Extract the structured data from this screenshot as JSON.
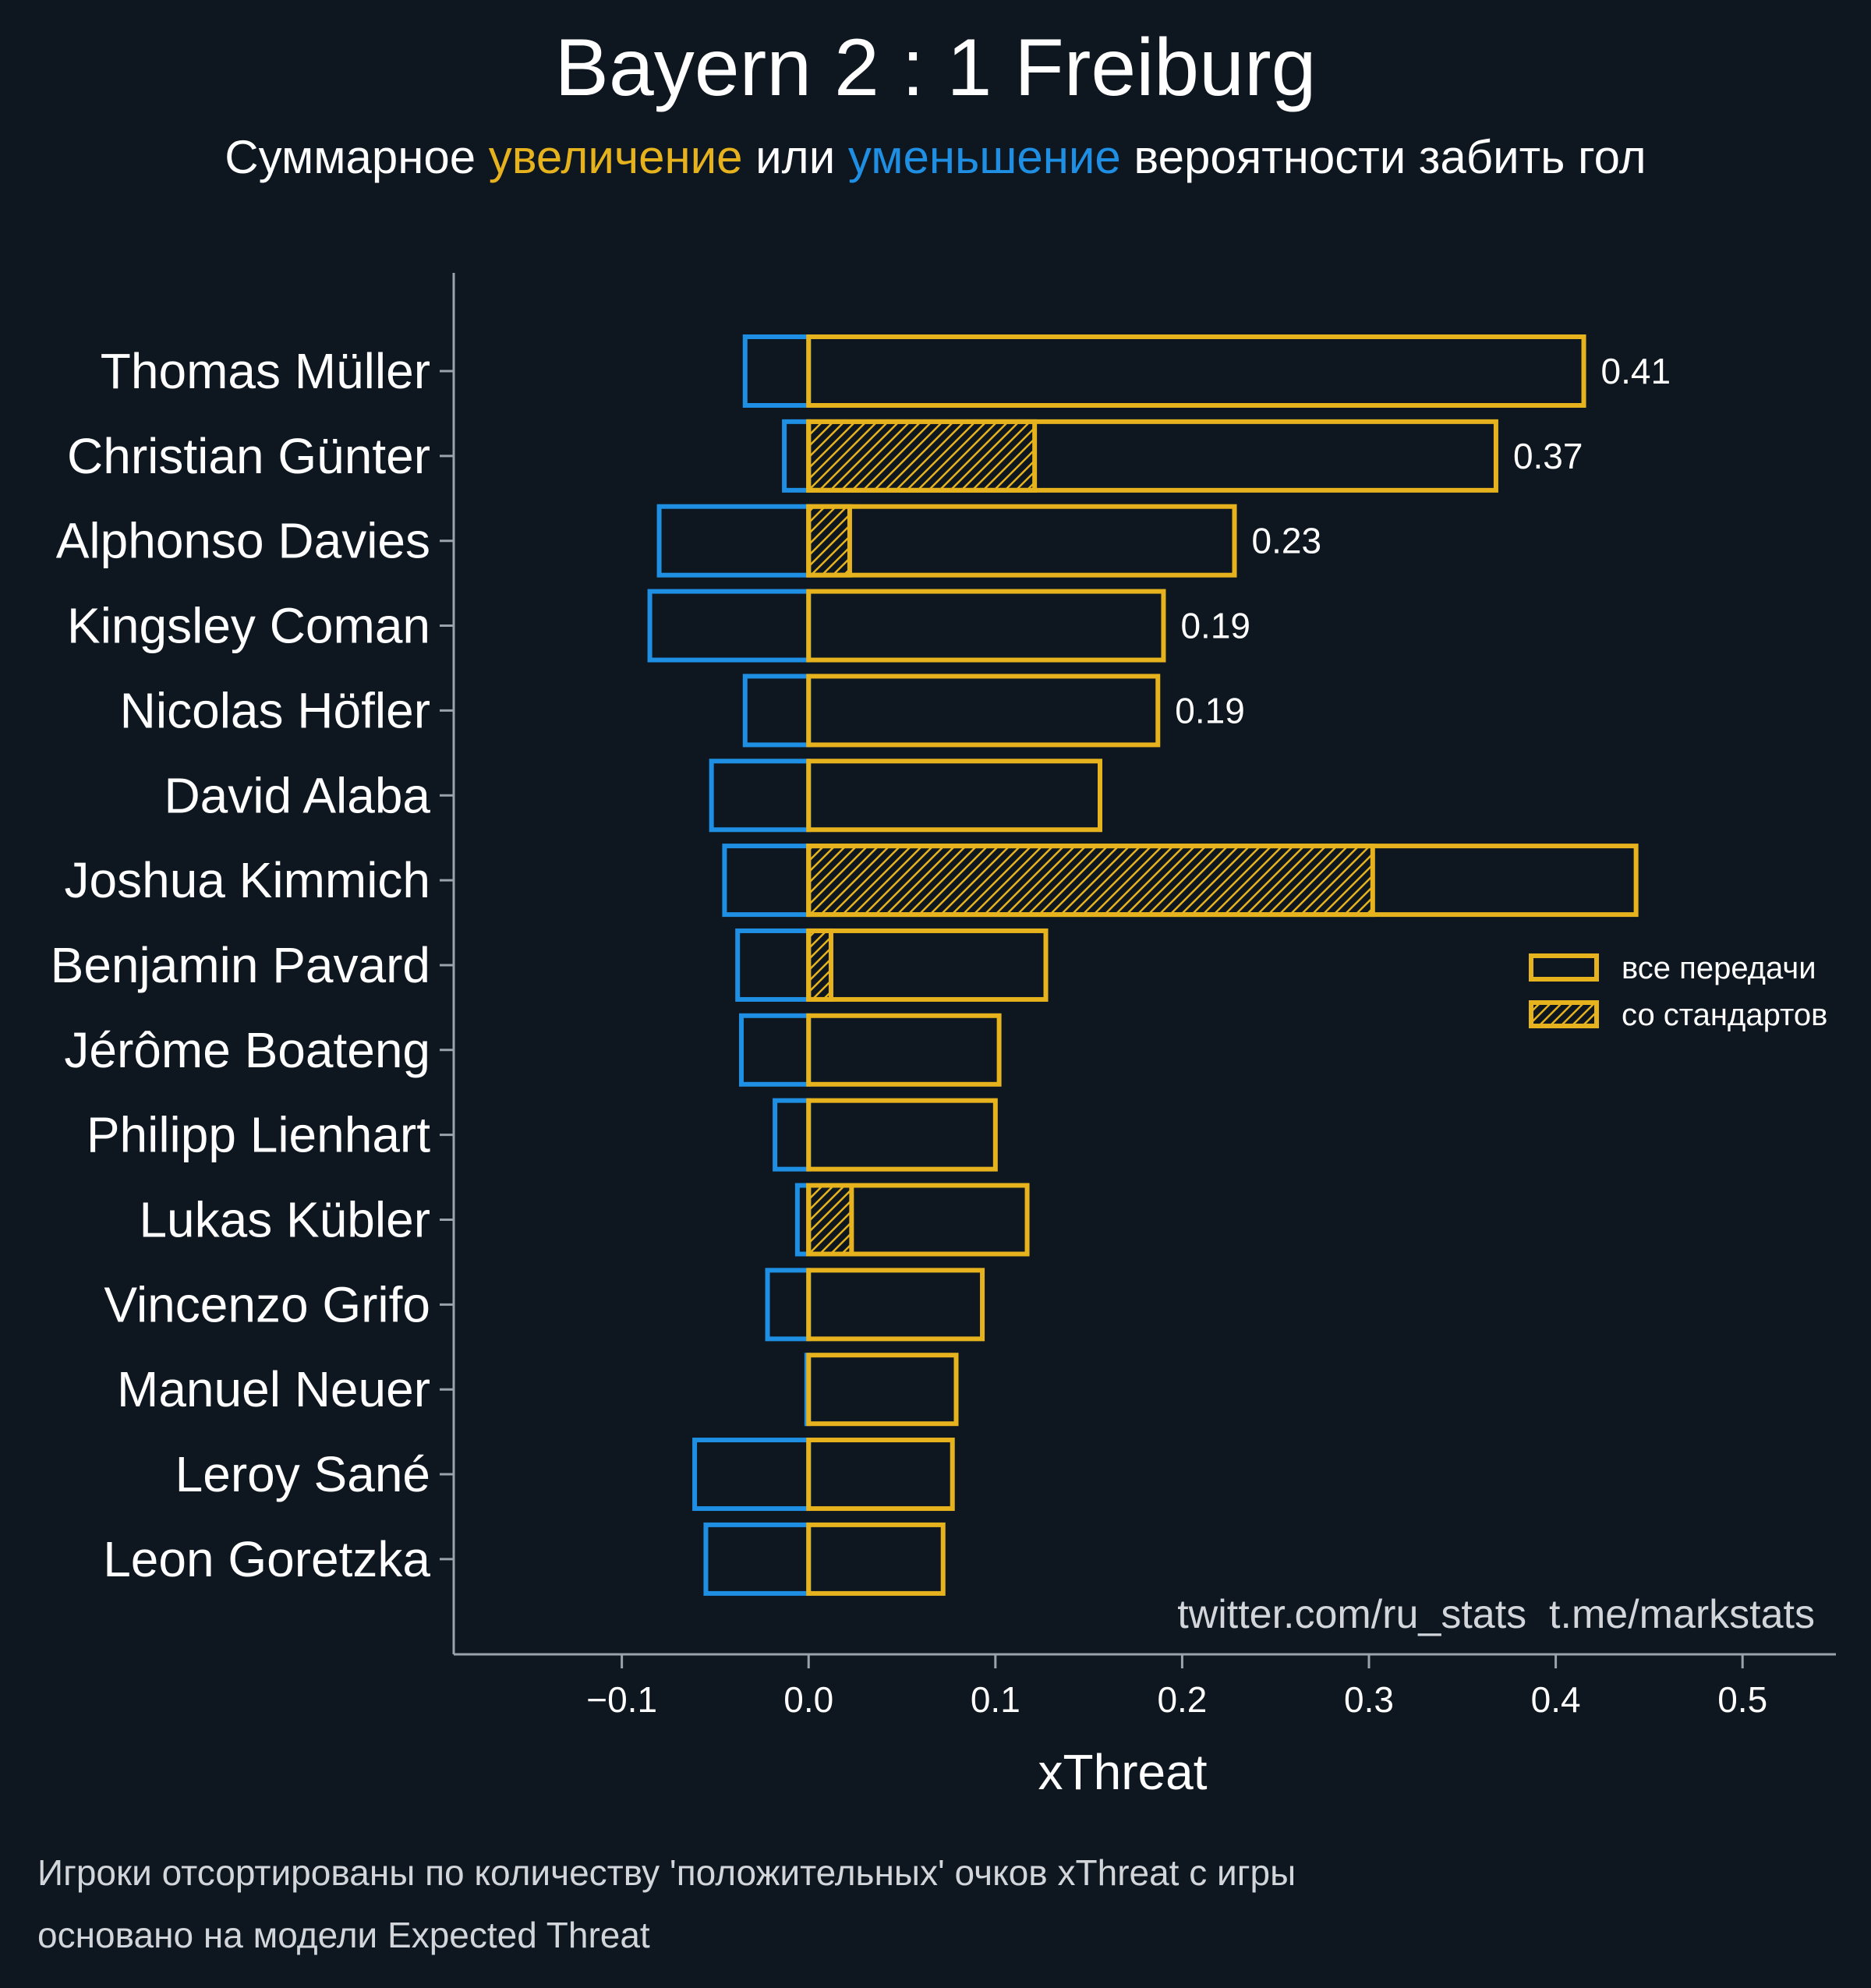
{
  "colors": {
    "background": "#0e1720",
    "positive": "#e6b31e",
    "negative": "#1f8fe3",
    "axis": "#9aa3ab",
    "text": "#ffffff",
    "muted": "#d2d6da"
  },
  "chart_data": {
    "type": "bar",
    "orientation": "horizontal",
    "title": "Bayern 2 : 1 Freiburg",
    "subtitle": {
      "prefix": "Суммарное ",
      "positive_word": "увеличение",
      "middle": " или ",
      "negative_word": "уменьшение",
      "suffix": " вероятности забить гол"
    },
    "xlabel": "xThreat",
    "xlim": [
      -0.19,
      0.55
    ],
    "xticks": [
      -0.1,
      0.0,
      0.1,
      0.2,
      0.3,
      0.4,
      0.5
    ],
    "xtick_labels": [
      "−0.1",
      "0.0",
      "0.1",
      "0.2",
      "0.3",
      "0.4",
      "0.5"
    ],
    "categories": [
      "Thomas Müller",
      "Christian Günter",
      "Alphonso Davies",
      "Kingsley Coman",
      "Nicolas Höfler",
      "David Alaba",
      "Joshua Kimmich",
      "Benjamin Pavard",
      "Jérôme Boateng",
      "Philipp Lienhart",
      "Lukas Kübler",
      "Vincenzo Grifo",
      "Manuel Neuer",
      "Leroy Sané",
      "Leon Goretzka"
    ],
    "series": [
      {
        "name": "все передачи (положительные)",
        "values": [
          0.415,
          0.368,
          0.228,
          0.19,
          0.187,
          0.156,
          0.443,
          0.127,
          0.102,
          0.1,
          0.117,
          0.093,
          0.079,
          0.077,
          0.072
        ]
      },
      {
        "name": "все передачи (отрицательные)",
        "values": [
          -0.034,
          -0.013,
          -0.08,
          -0.085,
          -0.034,
          -0.052,
          -0.045,
          -0.038,
          -0.036,
          -0.018,
          -0.006,
          -0.022,
          -0.001,
          -0.061,
          -0.055
        ]
      },
      {
        "name": "со стандартов",
        "values": [
          0.0,
          0.121,
          0.022,
          0.0,
          0.0,
          0.0,
          0.302,
          0.012,
          0.0,
          0.0,
          0.023,
          0.0,
          0.0,
          0.0,
          0.0
        ]
      }
    ],
    "value_labels": [
      "0.41",
      "0.37",
      "0.23",
      "0.19",
      "0.19",
      "",
      "",
      "",
      "",
      "",
      "",
      "",
      "",
      "",
      ""
    ],
    "legend": {
      "placement": "right",
      "items": [
        "все передачи",
        "со стандартов"
      ]
    },
    "watermark": "twitter.com/ru_stats  t.me/markstats",
    "footnotes": [
      "Игроки отсортированы по количеству 'положительных' очков xThreat с игры",
      "основано на модели Expected Threat"
    ]
  }
}
